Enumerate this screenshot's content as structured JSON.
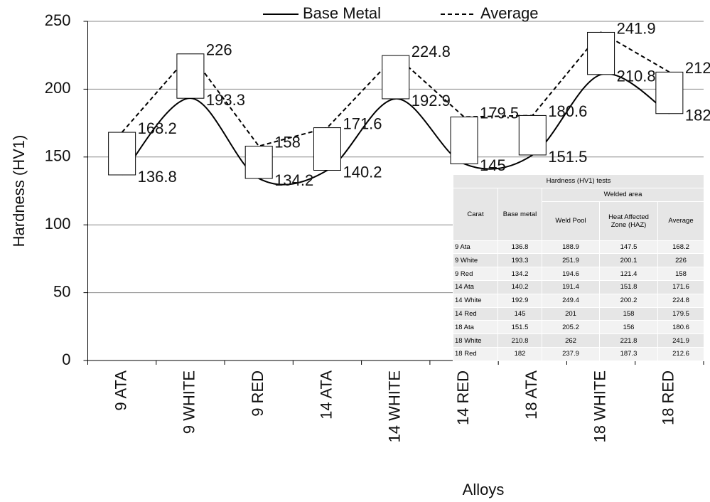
{
  "chart_data": {
    "type": "line",
    "x_label": "Alloys",
    "y_label": "Hardness (HV1)",
    "categories": [
      "9 ATA",
      "9 WHITE",
      "9 RED",
      "14 ATA",
      "14 WHITE",
      "14 RED",
      "18 ATA",
      "18 WHITE",
      "18 RED"
    ],
    "series": [
      {
        "name": "Base Metal",
        "color": "#000000",
        "style": "solid",
        "smooth": true,
        "values": [
          136.8,
          193.3,
          134.2,
          140.2,
          192.9,
          145,
          151.5,
          210.8,
          182
        ]
      },
      {
        "name": "Average",
        "color": "#000000",
        "style": "dashed",
        "smooth": false,
        "values": [
          168.2,
          226,
          158,
          171.6,
          224.8,
          179.5,
          180.6,
          241.9,
          212.6
        ]
      }
    ],
    "ylim": [
      0,
      250
    ],
    "yticks": [
      0,
      50,
      100,
      150,
      200,
      250
    ],
    "grid": true,
    "legend": "top",
    "up_down_boxes": true,
    "table": {
      "title": "Hardness (HV1) tests",
      "group_header": "Welded area",
      "columns": [
        "Carat",
        "Base metal",
        "Weld Pool",
        "Heat Affected Zone (HAZ)",
        "Average"
      ],
      "rows": [
        "9 Ata",
        "9 White",
        "9 Red",
        "14 Ata",
        "14 White",
        "14 Red",
        "18 Ata",
        "18 White",
        "18 Red"
      ],
      "weld_pool": [
        188.9,
        251.9,
        194.6,
        191.4,
        249.4,
        201,
        205.2,
        262,
        237.9
      ],
      "haz": [
        147.5,
        200.1,
        121.4,
        151.8,
        200.2,
        158,
        156,
        221.8,
        187.3
      ]
    }
  }
}
